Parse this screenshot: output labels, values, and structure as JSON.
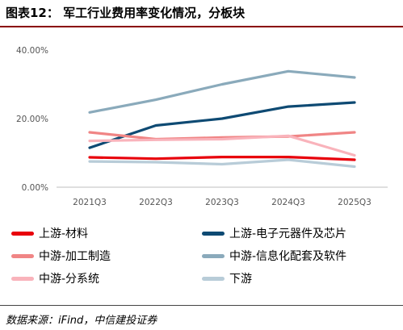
{
  "header": {
    "title": "图表12：   军工行业费用率变化情况，分板块"
  },
  "footer": {
    "source": "数据来源：iFind，中信建投证券"
  },
  "chart_data": {
    "type": "line",
    "title": "军工行业费用率变化情况，分板块",
    "x": [
      "2021Q3",
      "2022Q3",
      "2023Q3",
      "2024Q3",
      "2025Q3"
    ],
    "ylim": [
      0,
      40
    ],
    "yticks": [
      0,
      20,
      40
    ],
    "ytick_labels": [
      "0.00%",
      "20.00%",
      "40.00%"
    ],
    "grid": false,
    "legend_position": "bottom",
    "series": [
      {
        "name": "上游-材料",
        "color": "#e8000b",
        "values": [
          8.7,
          8.3,
          8.8,
          8.8,
          8.0
        ]
      },
      {
        "name": "上游-电子元器件及芯片",
        "color": "#0e4a73",
        "values": [
          11.5,
          18.0,
          20.0,
          23.5,
          24.7
        ]
      },
      {
        "name": "中游-加工制造",
        "color": "#f08585",
        "values": [
          16.0,
          14.0,
          14.5,
          14.8,
          16.0
        ]
      },
      {
        "name": "中游-信息化配套及软件",
        "color": "#8aaabb",
        "values": [
          21.8,
          25.5,
          30.0,
          33.8,
          32.0
        ]
      },
      {
        "name": "中游-分系统",
        "color": "#f9b3bb",
        "values": [
          13.5,
          13.8,
          14.0,
          15.0,
          9.3
        ]
      },
      {
        "name": "下游",
        "color": "#b8ccd8",
        "values": [
          7.5,
          7.3,
          6.7,
          8.0,
          6.0
        ]
      }
    ]
  }
}
